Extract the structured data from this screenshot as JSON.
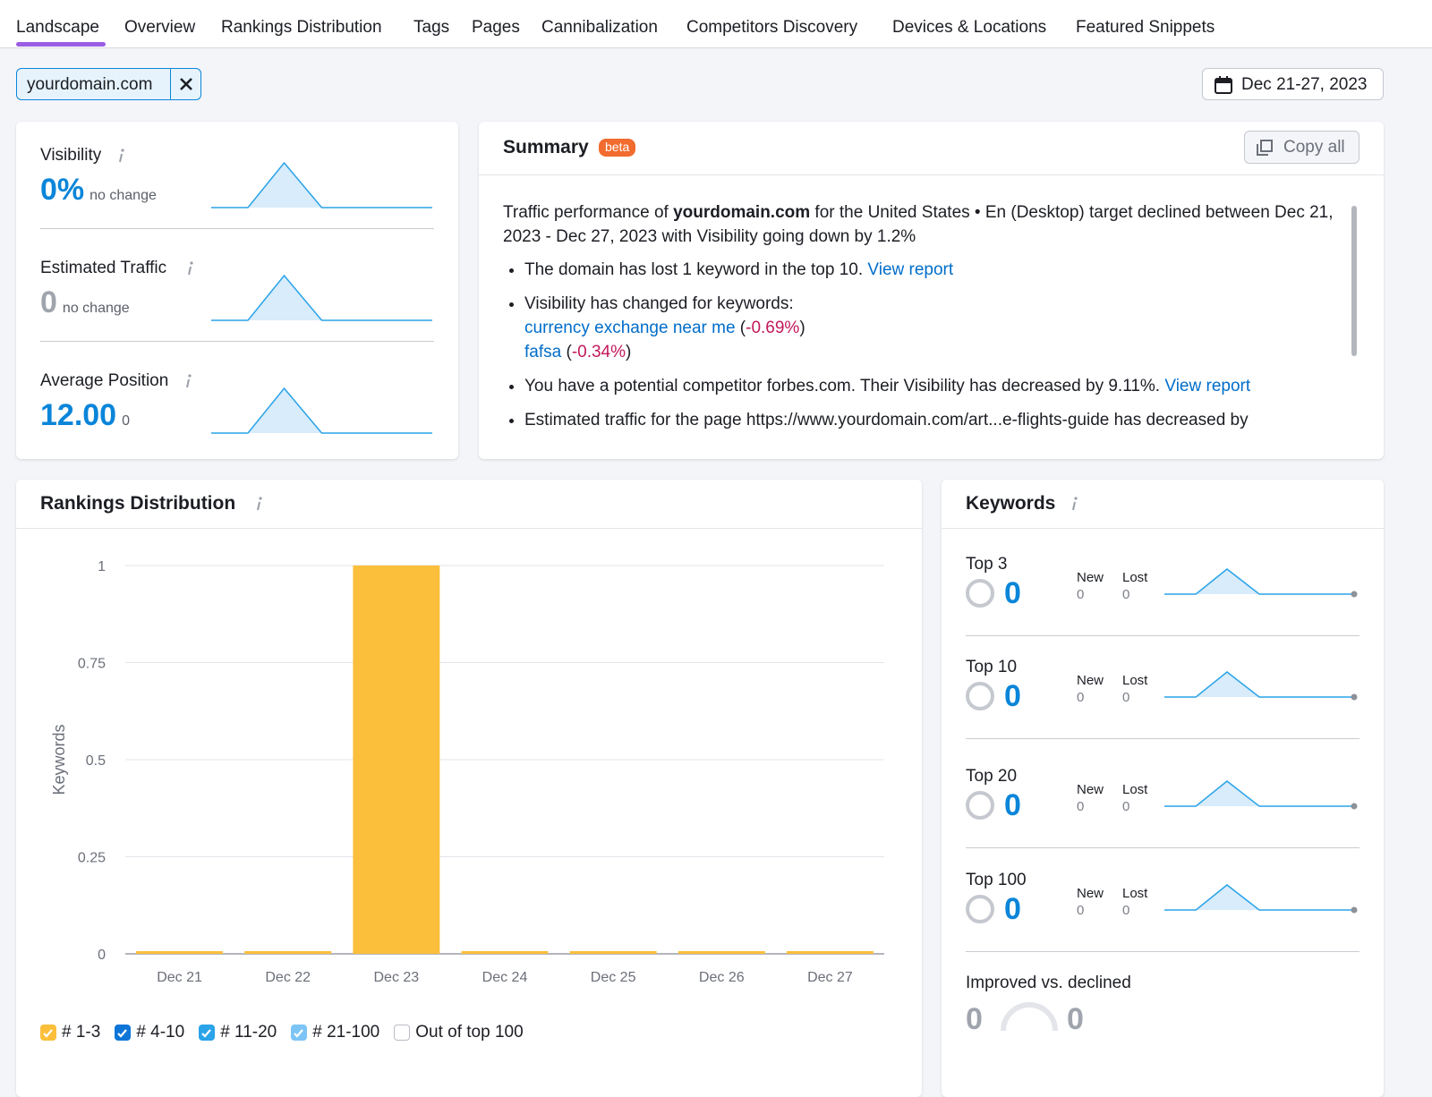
{
  "tabs": [
    "Landscape",
    "Overview",
    "Rankings Distribution",
    "Tags",
    "Pages",
    "Cannibalization",
    "Competitors Discovery",
    "Devices & Locations",
    "Featured Snippets"
  ],
  "domain": "yourdomain.com",
  "date_range": "Dec 21-27, 2023",
  "metrics": [
    {
      "label": "Visibility",
      "value": "0%",
      "change": "no change"
    },
    {
      "label": "Estimated Traffic",
      "value": "0",
      "change": "no change"
    },
    {
      "label": "Average Position",
      "value": "12.00",
      "change": "0"
    }
  ],
  "summary": {
    "title": "Summary",
    "badge": "beta",
    "copy_button": "Copy all",
    "intro": [
      {
        "text": "Traffic performance of "
      },
      {
        "text": "yourdomain.com",
        "style": "bold"
      },
      {
        "text": " for the United States • En (Desktop) target declined between Dec 21, 2023 - Dec 27, 2023 with Visibility going down by 1.2%"
      }
    ],
    "bullets": [
      [
        [
          {
            "text": "The domain has lost 1 keyword in the top 10. "
          },
          {
            "text": "View report",
            "style": "link"
          }
        ]
      ],
      [
        [
          {
            "text": "Visibility has changed for keywords:"
          }
        ],
        [
          {
            "text": "currency exchange near me",
            "style": "link"
          },
          {
            "text": " ("
          },
          {
            "text": "-0.69%",
            "style": "neg"
          },
          {
            "text": ")"
          }
        ],
        [
          {
            "text": "fafsa",
            "style": "link"
          },
          {
            "text": " ("
          },
          {
            "text": "-0.34%",
            "style": "neg"
          },
          {
            "text": ")"
          }
        ]
      ],
      [
        [
          {
            "text": "You have a potential competitor forbes.com. Their Visibility has decreased by 9.11%. "
          },
          {
            "text": "View report",
            "style": "link"
          }
        ]
      ],
      [
        [
          {
            "text": "Estimated traffic for the page https://www.yourdomain.com/art...e-flights-guide has decreased by"
          }
        ]
      ]
    ]
  },
  "chart_data": {
    "type": "bar",
    "stacked": true,
    "title": "Rankings Distribution",
    "y_label": "Keywords",
    "categories": [
      "Dec 21",
      "Dec 22",
      "Dec 23",
      "Dec 24",
      "Dec 25",
      "Dec 26",
      "Dec 27"
    ],
    "series": [
      {
        "name": "# 1-3",
        "color": "#fbbf3b",
        "checked": true,
        "values": [
          0,
          0,
          1,
          0,
          0,
          0,
          0
        ]
      },
      {
        "name": "# 4-10",
        "color": "#0e75d8",
        "checked": true,
        "values": [
          0,
          0,
          0,
          0,
          0,
          0,
          0
        ]
      },
      {
        "name": "# 11-20",
        "color": "#2aa3e8",
        "checked": true,
        "values": [
          0,
          0,
          0,
          0,
          0,
          0,
          0
        ]
      },
      {
        "name": "# 21-100",
        "color": "#7cc4f5",
        "checked": true,
        "values": [
          0,
          0,
          0,
          0,
          0,
          0,
          0
        ]
      },
      {
        "name": "Out of top 100",
        "color": "#ffffff",
        "checked": false,
        "values": [
          0,
          0,
          0,
          0,
          0,
          0,
          0
        ]
      }
    ],
    "ylim": [
      0,
      1
    ],
    "yticks": [
      0,
      0.25,
      0.5,
      0.75,
      1
    ],
    "grid": true
  },
  "keywords": {
    "title": "Keywords",
    "groups": [
      {
        "label": "Top 3",
        "value": "0",
        "new_label": "New",
        "new": "0",
        "lost_label": "Lost",
        "lost": "0"
      },
      {
        "label": "Top 10",
        "value": "0",
        "new_label": "New",
        "new": "0",
        "lost_label": "Lost",
        "lost": "0"
      },
      {
        "label": "Top 20",
        "value": "0",
        "new_label": "New",
        "new": "0",
        "lost_label": "Lost",
        "lost": "0"
      },
      {
        "label": "Top 100",
        "value": "0",
        "new_label": "New",
        "new": "0",
        "lost_label": "Lost",
        "lost": "0"
      }
    ],
    "improved_label": "Improved vs. declined",
    "improved": "0",
    "declined": "0"
  }
}
